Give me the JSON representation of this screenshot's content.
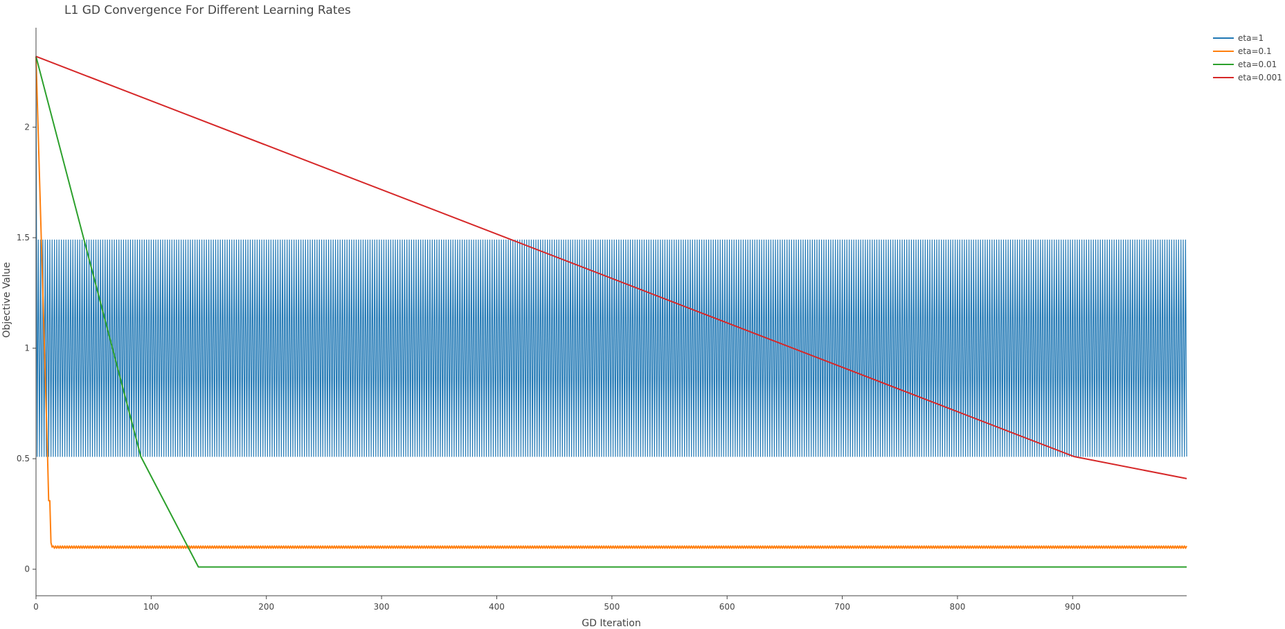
{
  "chart_data": {
    "type": "line",
    "title": "L1 GD Convergence For Different Learning Rates",
    "xlabel": "GD Iteration",
    "ylabel": "Objective Value",
    "xlim": [
      0,
      999
    ],
    "ylim": [
      -0.12,
      2.45
    ],
    "xticks": [
      0,
      100,
      200,
      300,
      400,
      500,
      600,
      700,
      800,
      900
    ],
    "yticks": [
      0,
      0.5,
      1,
      1.5,
      2
    ],
    "ytick_labels": [
      "0",
      "0.5",
      "1",
      "1.5",
      "2"
    ],
    "grid": false,
    "legend_position": "top-right",
    "series": [
      {
        "name": "eta=1",
        "color": "#1f77b4",
        "pattern": "oscillating",
        "start": 2.32,
        "high": 1.49,
        "low": 0.51,
        "x_end": 999
      },
      {
        "name": "eta=0.1",
        "color": "#ff7f0e",
        "points": [
          [
            0,
            2.32
          ],
          [
            10,
            0.52
          ],
          [
            11,
            0.31
          ],
          [
            12,
            0.31
          ],
          [
            13,
            0.12
          ],
          [
            14,
            0.1
          ],
          [
            999,
            0.1
          ]
        ],
        "oscillation": 0.01
      },
      {
        "name": "eta=0.01",
        "color": "#2ca02c",
        "points": [
          [
            0,
            2.32
          ],
          [
            91,
            0.51
          ],
          [
            141,
            0.01
          ],
          [
            999,
            0.01
          ]
        ]
      },
      {
        "name": "eta=0.001",
        "color": "#d62728",
        "points": [
          [
            0,
            2.32
          ],
          [
            901,
            0.51
          ],
          [
            999,
            0.41
          ]
        ]
      }
    ]
  }
}
